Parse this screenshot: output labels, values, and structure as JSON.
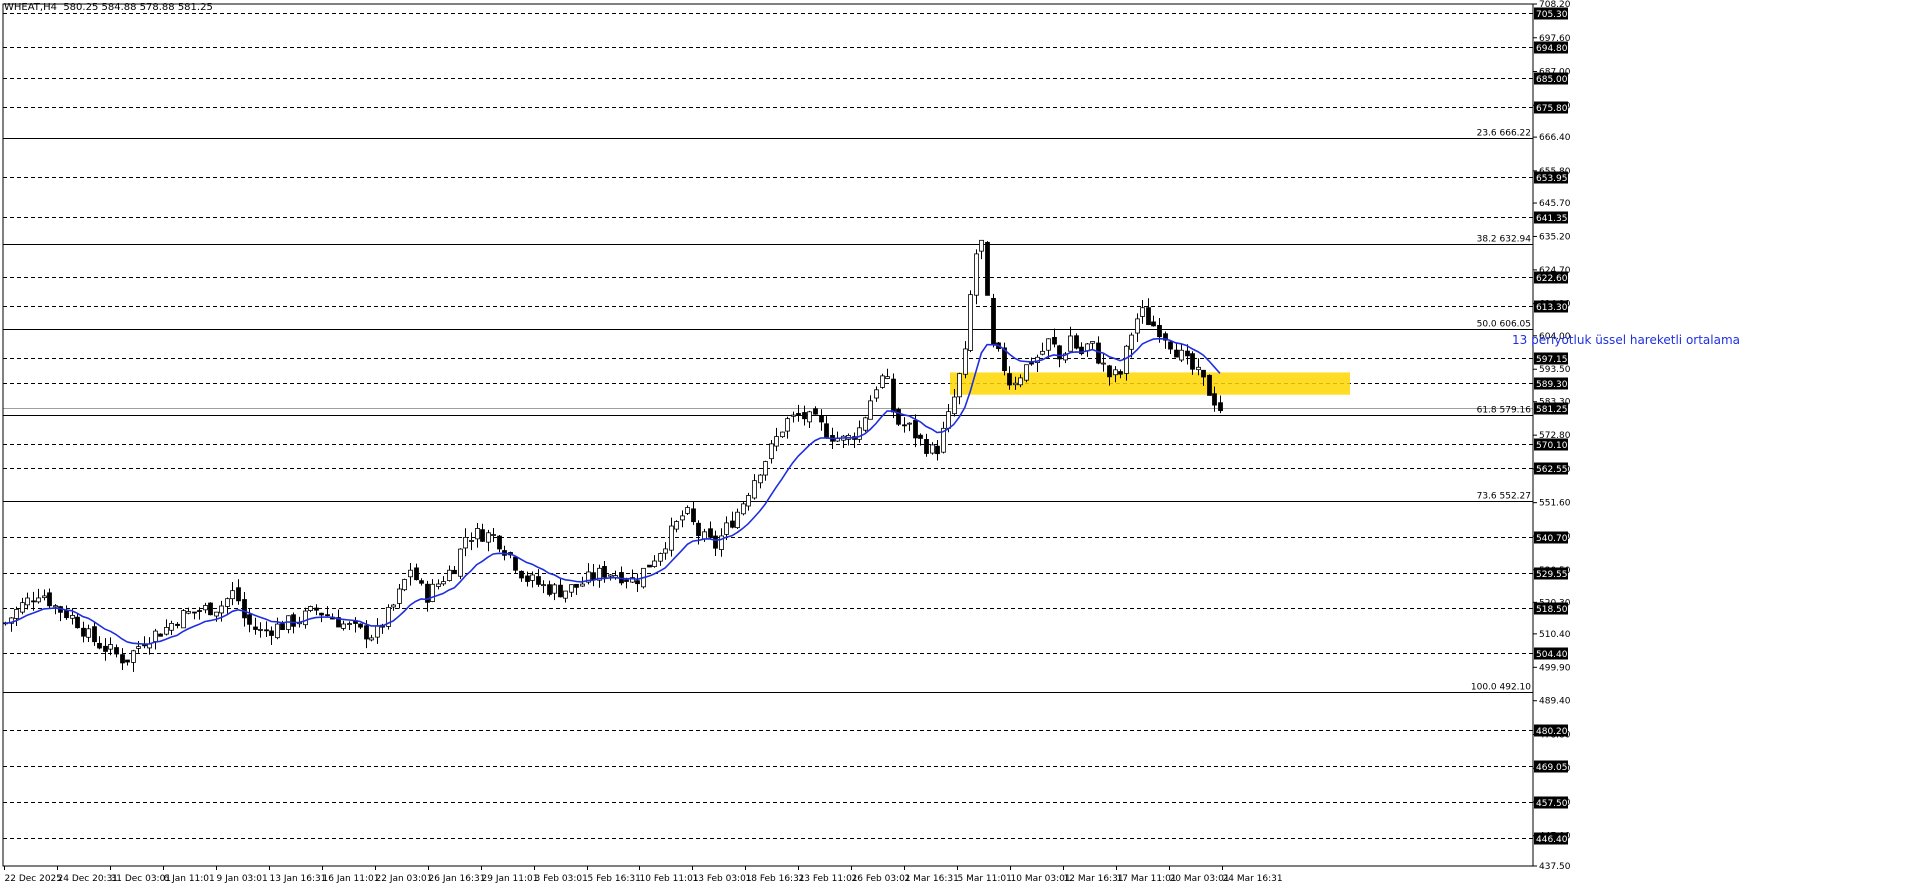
{
  "header": {
    "symbol_line": "WHEAT,H4  580.25 584.88 578.88 581.25"
  },
  "annotations": {
    "ema_label": "13 periyotluk üssel hareketli ortalama"
  },
  "colors": {
    "background": "#ffffff",
    "candle": "#000000",
    "ema": "#1f2fe0",
    "zone": "#ffd700",
    "ema_label": "#1f2fe0",
    "level_tag_bg": "#000000",
    "level_tag_text": "#ffffff"
  },
  "chart_data": {
    "type": "candlestick",
    "title": "WHEAT,H4",
    "ylim": [
      437.5,
      708.2
    ],
    "grid": false,
    "y_scale_labels": [
      "708.20",
      "697.60",
      "687.00",
      "676.40",
      "666.40",
      "655.80",
      "645.70",
      "635.20",
      "624.70",
      "614.10",
      "604.00",
      "593.50",
      "583.30",
      "572.80",
      "562.20",
      "551.60",
      "541.10",
      "530.50",
      "520.30",
      "510.40",
      "499.90",
      "489.40",
      "478.80",
      "468.20",
      "457.60",
      "447.00",
      "437.50"
    ],
    "horizontal_levels": [
      "705.30",
      "694.80",
      "685.00",
      "675.80",
      "653.95",
      "641.35",
      "622.60",
      "613.30",
      "597.15",
      "589.30",
      "570.10",
      "562.55",
      "540.70",
      "529.55",
      "518.50",
      "504.40",
      "480.20",
      "469.05",
      "457.50",
      "446.40"
    ],
    "current_price": "581.25",
    "fibonacci_levels": [
      {
        "label": "23.6 666.22",
        "value": 666.22
      },
      {
        "label": "38.2 632.94",
        "value": 632.94
      },
      {
        "label": "50.0 606.05",
        "value": 606.05
      },
      {
        "label": "61.8 579.16",
        "value": 579.16
      },
      {
        "label": "73.6 552.27",
        "value": 552.27
      },
      {
        "label": "100.0 492.10",
        "value": 492.1
      }
    ],
    "zone": {
      "from_value": 585.5,
      "to_value": 592.5
    },
    "x_labels": [
      "22 Dec 2025",
      "24 Dec 20:31",
      "31 Dec 03:01",
      "6 Jan 11:01",
      "9 Jan 03:01",
      "13 Jan 16:31",
      "16 Jan 11:01",
      "22 Jan 03:01",
      "26 Jan 16:31",
      "29 Jan 11:01",
      "3 Feb 03:01",
      "5 Feb 16:31",
      "10 Feb 11:01",
      "13 Feb 03:01",
      "18 Feb 16:31",
      "23 Feb 11:01",
      "26 Feb 03:01",
      "2 Mar 16:31",
      "5 Mar 11:01",
      "10 Mar 03:01",
      "12 Mar 16:31",
      "17 Mar 11:01",
      "20 Mar 03:01",
      "24 Mar 16:31"
    ],
    "close_anchors": [
      [
        0,
        512
      ],
      [
        20,
        519
      ],
      [
        40,
        524
      ],
      [
        55,
        519
      ],
      [
        75,
        515
      ],
      [
        90,
        509
      ],
      [
        110,
        505
      ],
      [
        125,
        502
      ],
      [
        145,
        509
      ],
      [
        165,
        512
      ],
      [
        180,
        516
      ],
      [
        200,
        518
      ],
      [
        220,
        519
      ],
      [
        235,
        524
      ],
      [
        245,
        514
      ],
      [
        260,
        511
      ],
      [
        280,
        513
      ],
      [
        300,
        515
      ],
      [
        315,
        518
      ],
      [
        330,
        516
      ],
      [
        345,
        513
      ],
      [
        360,
        511
      ],
      [
        375,
        510
      ],
      [
        395,
        520
      ],
      [
        410,
        531
      ],
      [
        425,
        522
      ],
      [
        440,
        527
      ],
      [
        455,
        532
      ],
      [
        465,
        541
      ],
      [
        480,
        542
      ],
      [
        495,
        541
      ],
      [
        510,
        535
      ],
      [
        525,
        528
      ],
      [
        545,
        525
      ],
      [
        560,
        524
      ],
      [
        575,
        525
      ],
      [
        590,
        528
      ],
      [
        605,
        530
      ],
      [
        620,
        529
      ],
      [
        635,
        527
      ],
      [
        650,
        533
      ],
      [
        660,
        537
      ],
      [
        675,
        544
      ],
      [
        685,
        549
      ],
      [
        700,
        541
      ],
      [
        715,
        538
      ],
      [
        725,
        543
      ],
      [
        740,
        550
      ],
      [
        755,
        560
      ],
      [
        770,
        568
      ],
      [
        785,
        577
      ],
      [
        800,
        579
      ],
      [
        815,
        577
      ],
      [
        830,
        573
      ],
      [
        845,
        571
      ],
      [
        860,
        575
      ],
      [
        875,
        588
      ],
      [
        885,
        592
      ],
      [
        895,
        577
      ],
      [
        910,
        575
      ],
      [
        920,
        571
      ],
      [
        935,
        567
      ],
      [
        950,
        580
      ],
      [
        965,
        598
      ],
      [
        972,
        622
      ],
      [
        980,
        638
      ],
      [
        985,
        620
      ],
      [
        992,
        600
      ],
      [
        1000,
        597
      ],
      [
        1010,
        589
      ],
      [
        1020,
        592
      ],
      [
        1030,
        596
      ],
      [
        1040,
        598
      ],
      [
        1050,
        603
      ],
      [
        1060,
        596
      ],
      [
        1070,
        604
      ],
      [
        1080,
        598
      ],
      [
        1090,
        602
      ],
      [
        1100,
        596
      ],
      [
        1110,
        591
      ],
      [
        1120,
        592
      ],
      [
        1130,
        604
      ],
      [
        1140,
        612
      ],
      [
        1150,
        608
      ],
      [
        1160,
        606
      ],
      [
        1170,
        602
      ],
      [
        1180,
        598
      ],
      [
        1190,
        594
      ],
      [
        1200,
        591
      ],
      [
        1210,
        586
      ],
      [
        1220,
        581.25
      ]
    ],
    "candle_count": 220,
    "ema_period": 13
  }
}
